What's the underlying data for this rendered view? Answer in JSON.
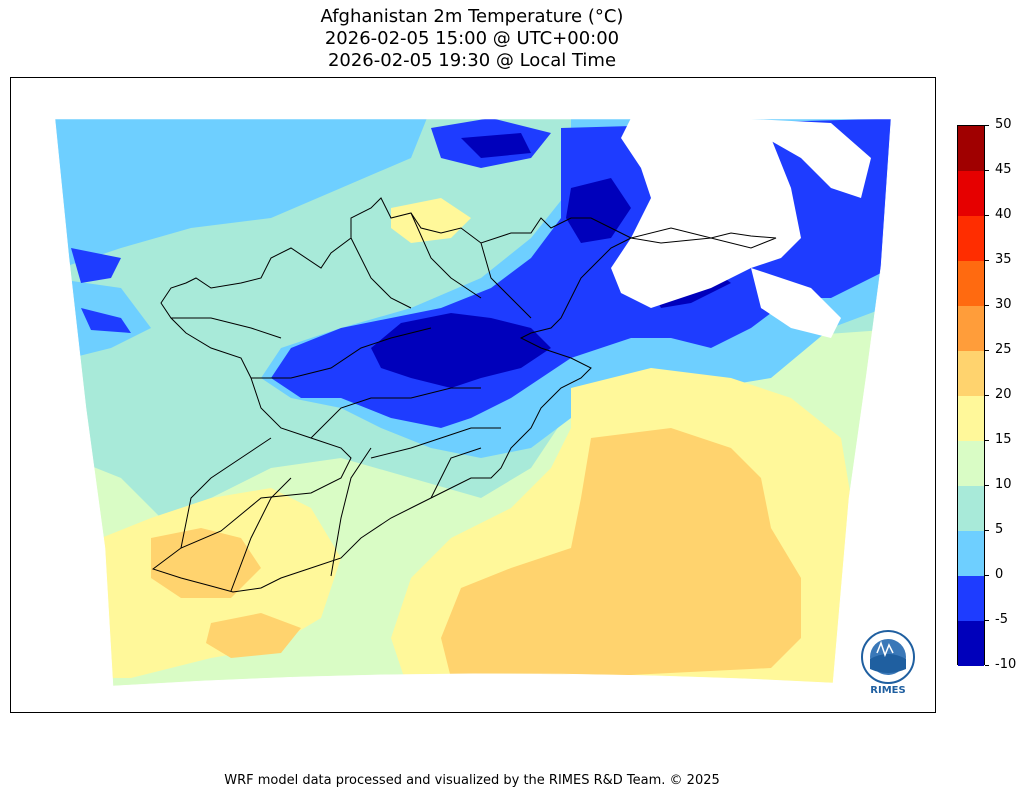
{
  "title": {
    "line1": "Afghanistan 2m Temperature (°C)",
    "line2": "2026-02-05 15:00 @ UTC+00:00",
    "line3": "2026-02-05 19:30 @ Local Time"
  },
  "colorbar": {
    "levels": [
      "-10",
      "-5",
      "0",
      "5",
      "10",
      "15",
      "20",
      "25",
      "30",
      "35",
      "40",
      "45",
      "50"
    ],
    "colors": [
      "#0000bb",
      "#1e3cff",
      "#6ecfff",
      "#a8ead9",
      "#d9fcc5",
      "#fff89a",
      "#ffd36e",
      "#ff9d3a",
      "#ff6a10",
      "#ff2d00",
      "#e60000",
      "#a00000"
    ]
  },
  "palette": {
    "deep_blue": "#0000bb",
    "blue": "#1e3cff",
    "light_blue": "#6ecfff",
    "aqua": "#a8ead9",
    "pale_green": "#d9fcc5",
    "yellow": "#fff89a",
    "orange": "#ffd36e"
  },
  "logo": {
    "text": "RIMES"
  },
  "footer": "WRF model data processed and visualized by the RIMES R&D Team. © 2025"
}
